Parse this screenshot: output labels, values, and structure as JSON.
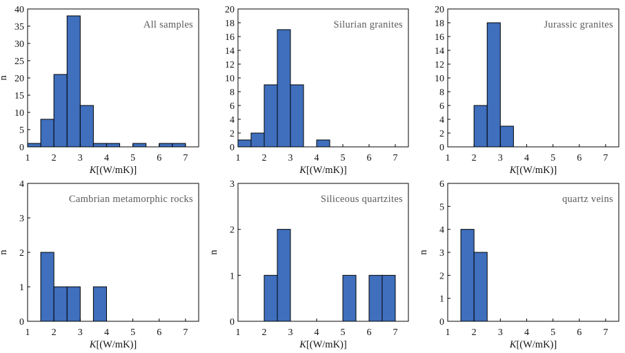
{
  "chart_data": [
    {
      "type": "bar",
      "title": "All samples",
      "xlabel_symbol": "K",
      "xlabel_unit": "[(W/mK)]",
      "ylabel": "n",
      "xlim": [
        1,
        7.5
      ],
      "ylim": [
        0,
        40
      ],
      "xticks": [
        1,
        2,
        3,
        4,
        5,
        6,
        7
      ],
      "yticks": [
        0,
        5,
        10,
        15,
        20,
        25,
        30,
        35,
        40
      ],
      "bin_width": 0.5,
      "bins": [
        1.25,
        1.75,
        2.25,
        2.75,
        3.25,
        3.75,
        4.25,
        4.75,
        5.25,
        5.75,
        6.25,
        6.75
      ],
      "values": [
        1,
        8,
        21,
        38,
        12,
        1,
        1,
        0,
        1,
        0,
        1,
        1
      ],
      "bar_color": "#3f6fbd"
    },
    {
      "type": "bar",
      "title": "Silurian granites",
      "xlabel_symbol": "K",
      "xlabel_unit": "[(W/mK)]",
      "ylabel": "",
      "xlim": [
        1,
        7.5
      ],
      "ylim": [
        0,
        20
      ],
      "xticks": [
        1,
        2,
        3,
        4,
        5,
        6,
        7
      ],
      "yticks": [
        0,
        2,
        4,
        6,
        8,
        10,
        12,
        14,
        16,
        18,
        20
      ],
      "bin_width": 0.5,
      "bins": [
        1.25,
        1.75,
        2.25,
        2.75,
        3.25,
        3.75,
        4.25
      ],
      "values": [
        1,
        2,
        9,
        17,
        9,
        0,
        1
      ],
      "bar_color": "#3f6fbd"
    },
    {
      "type": "bar",
      "title": "Jurassic granites",
      "xlabel_symbol": "K",
      "xlabel_unit": "[(W/mK)]",
      "ylabel": "",
      "xlim": [
        1,
        7.5
      ],
      "ylim": [
        0,
        20
      ],
      "xticks": [
        1,
        2,
        3,
        4,
        5,
        6,
        7
      ],
      "yticks": [
        0,
        2,
        4,
        6,
        8,
        10,
        12,
        14,
        16,
        18,
        20
      ],
      "bin_width": 0.5,
      "bins": [
        2.25,
        2.75,
        3.25
      ],
      "values": [
        6,
        18,
        3
      ],
      "bar_color": "#3f6fbd"
    },
    {
      "type": "bar",
      "title": "Cambrian metamorphic rocks",
      "xlabel_symbol": "K",
      "xlabel_unit": "[(W/mK)]",
      "ylabel": "n",
      "xlim": [
        1,
        7.5
      ],
      "ylim": [
        0,
        4
      ],
      "xticks": [
        1,
        2,
        3,
        4,
        5,
        6,
        7
      ],
      "yticks": [
        0,
        1,
        2,
        3,
        4
      ],
      "bin_width": 0.5,
      "bins": [
        1.75,
        2.25,
        2.75,
        3.25,
        3.75
      ],
      "values": [
        2,
        1,
        1,
        0,
        1
      ],
      "bar_color": "#3f6fbd"
    },
    {
      "type": "bar",
      "title": "Siliceous quartzites",
      "xlabel_symbol": "K",
      "xlabel_unit": "[(W/mK)]",
      "ylabel": "n",
      "xlim": [
        1,
        7.5
      ],
      "ylim": [
        0,
        3
      ],
      "xticks": [
        1,
        2,
        3,
        4,
        5,
        6,
        7
      ],
      "yticks": [
        0,
        1,
        2,
        3
      ],
      "bin_width": 0.5,
      "bins": [
        2.25,
        2.75,
        3.25,
        3.75,
        4.25,
        4.75,
        5.25,
        5.75,
        6.25,
        6.75
      ],
      "values": [
        1,
        2,
        0,
        0,
        0,
        0,
        1,
        0,
        1,
        1
      ],
      "bar_color": "#3f6fbd"
    },
    {
      "type": "bar",
      "title": "quartz veins",
      "xlabel_symbol": "K",
      "xlabel_unit": "[(W/mK)]",
      "ylabel": "n",
      "xlim": [
        1,
        7.5
      ],
      "ylim": [
        0,
        6
      ],
      "xticks": [
        1,
        2,
        3,
        4,
        5,
        6,
        7
      ],
      "yticks": [
        0,
        1,
        2,
        3,
        4,
        5,
        6
      ],
      "bin_width": 0.5,
      "bins": [
        1.75,
        2.25
      ],
      "values": [
        4,
        3
      ],
      "bar_color": "#3f6fbd"
    }
  ]
}
